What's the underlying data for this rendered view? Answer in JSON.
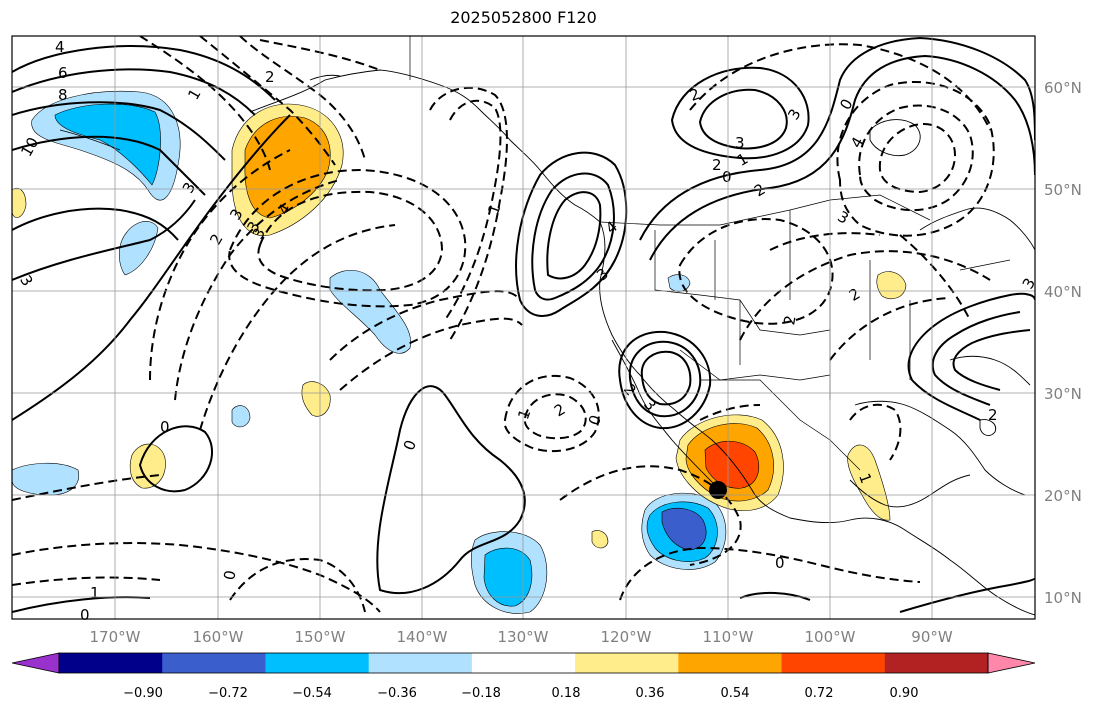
{
  "title": "2025052800 F120",
  "lon_labels": [
    "170°W",
    "160°W",
    "150°W",
    "140°W",
    "130°W",
    "120°W",
    "110°W",
    "100°W",
    "90°W"
  ],
  "lat_labels": [
    "60°N",
    "50°N",
    "40°N",
    "30°N",
    "20°N",
    "10°N"
  ],
  "colorbar": {
    "colors": [
      "#9932cc",
      "#00008b",
      "#3a5fcd",
      "#00bfff",
      "#b0e2ff",
      "#ffffff",
      "#ffec8b",
      "#ffa500",
      "#ff4500",
      "#b22222",
      "#ff88aa"
    ],
    "ticks": [
      "−0.90",
      "−0.72",
      "−0.54",
      "−0.36",
      "−0.18",
      "0.18",
      "0.36",
      "0.54",
      "0.72",
      "0.90"
    ]
  },
  "contour_labels": [
    "4",
    "6",
    "8",
    "10",
    "3",
    "2",
    "3",
    "4",
    "3",
    "2",
    "1",
    "0",
    "1",
    "2",
    "3",
    "4",
    "2",
    "3",
    "0",
    "2",
    "3",
    "2",
    "3",
    "2",
    "1",
    "0",
    "0",
    "1",
    "0",
    "0",
    "1",
    "0",
    "2",
    "3",
    "2",
    "4",
    "2",
    "3",
    "3",
    "3",
    "1",
    "0"
  ],
  "marker": "storm-position-dot"
}
